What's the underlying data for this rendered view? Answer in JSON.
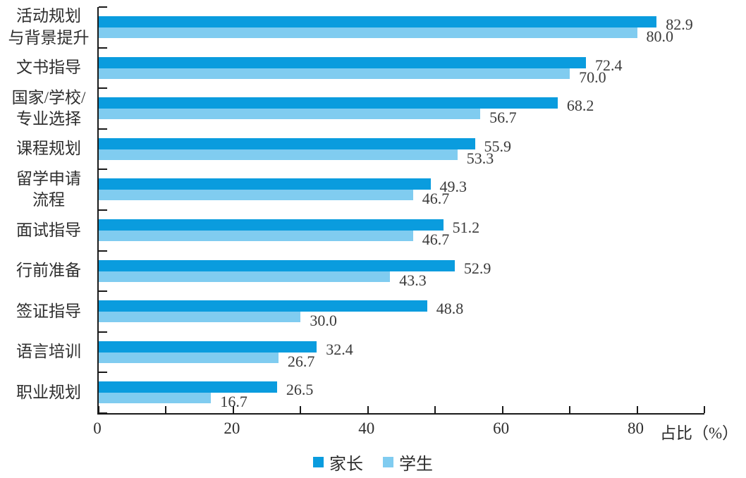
{
  "chart_data": {
    "type": "bar",
    "orientation": "horizontal",
    "title": "",
    "xlabel": "占比（%）",
    "ylabel": "",
    "xlim": [
      0,
      90
    ],
    "x_major_ticks": [
      0,
      20,
      40,
      60,
      80
    ],
    "x_minor_tick_step": 10,
    "grid": false,
    "legend_position": "bottom",
    "categories": [
      "活动规划\n与背景提升",
      "文书指导",
      "国家/学校/\n专业选择",
      "课程规划",
      "留学申请\n流程",
      "面试指导",
      "行前准备",
      "签证指导",
      "语言培训",
      "职业规划"
    ],
    "series": [
      {
        "name": "家长",
        "color": "#0a9cde",
        "values": [
          82.9,
          72.4,
          68.2,
          55.9,
          49.3,
          51.2,
          52.9,
          48.8,
          32.4,
          26.5
        ],
        "labels": [
          "82.9",
          "72.4",
          "68.2",
          "55.9",
          "49.3",
          "51.2",
          "52.9",
          "48.8",
          "32.4",
          "26.5"
        ]
      },
      {
        "name": "学生",
        "color": "#80ccf0",
        "values": [
          80.0,
          70.0,
          56.7,
          53.3,
          46.7,
          46.7,
          43.3,
          30.0,
          26.7,
          16.7
        ],
        "labels": [
          "80.0",
          "70.0",
          "56.7",
          "53.3",
          "46.7",
          "46.7",
          "43.3",
          "30.0",
          "26.7",
          "16.7"
        ]
      }
    ],
    "colors": {
      "axis": "#1a1a1a",
      "value_text": "#3a3a3a",
      "label_text": "#2e2e2e"
    }
  }
}
